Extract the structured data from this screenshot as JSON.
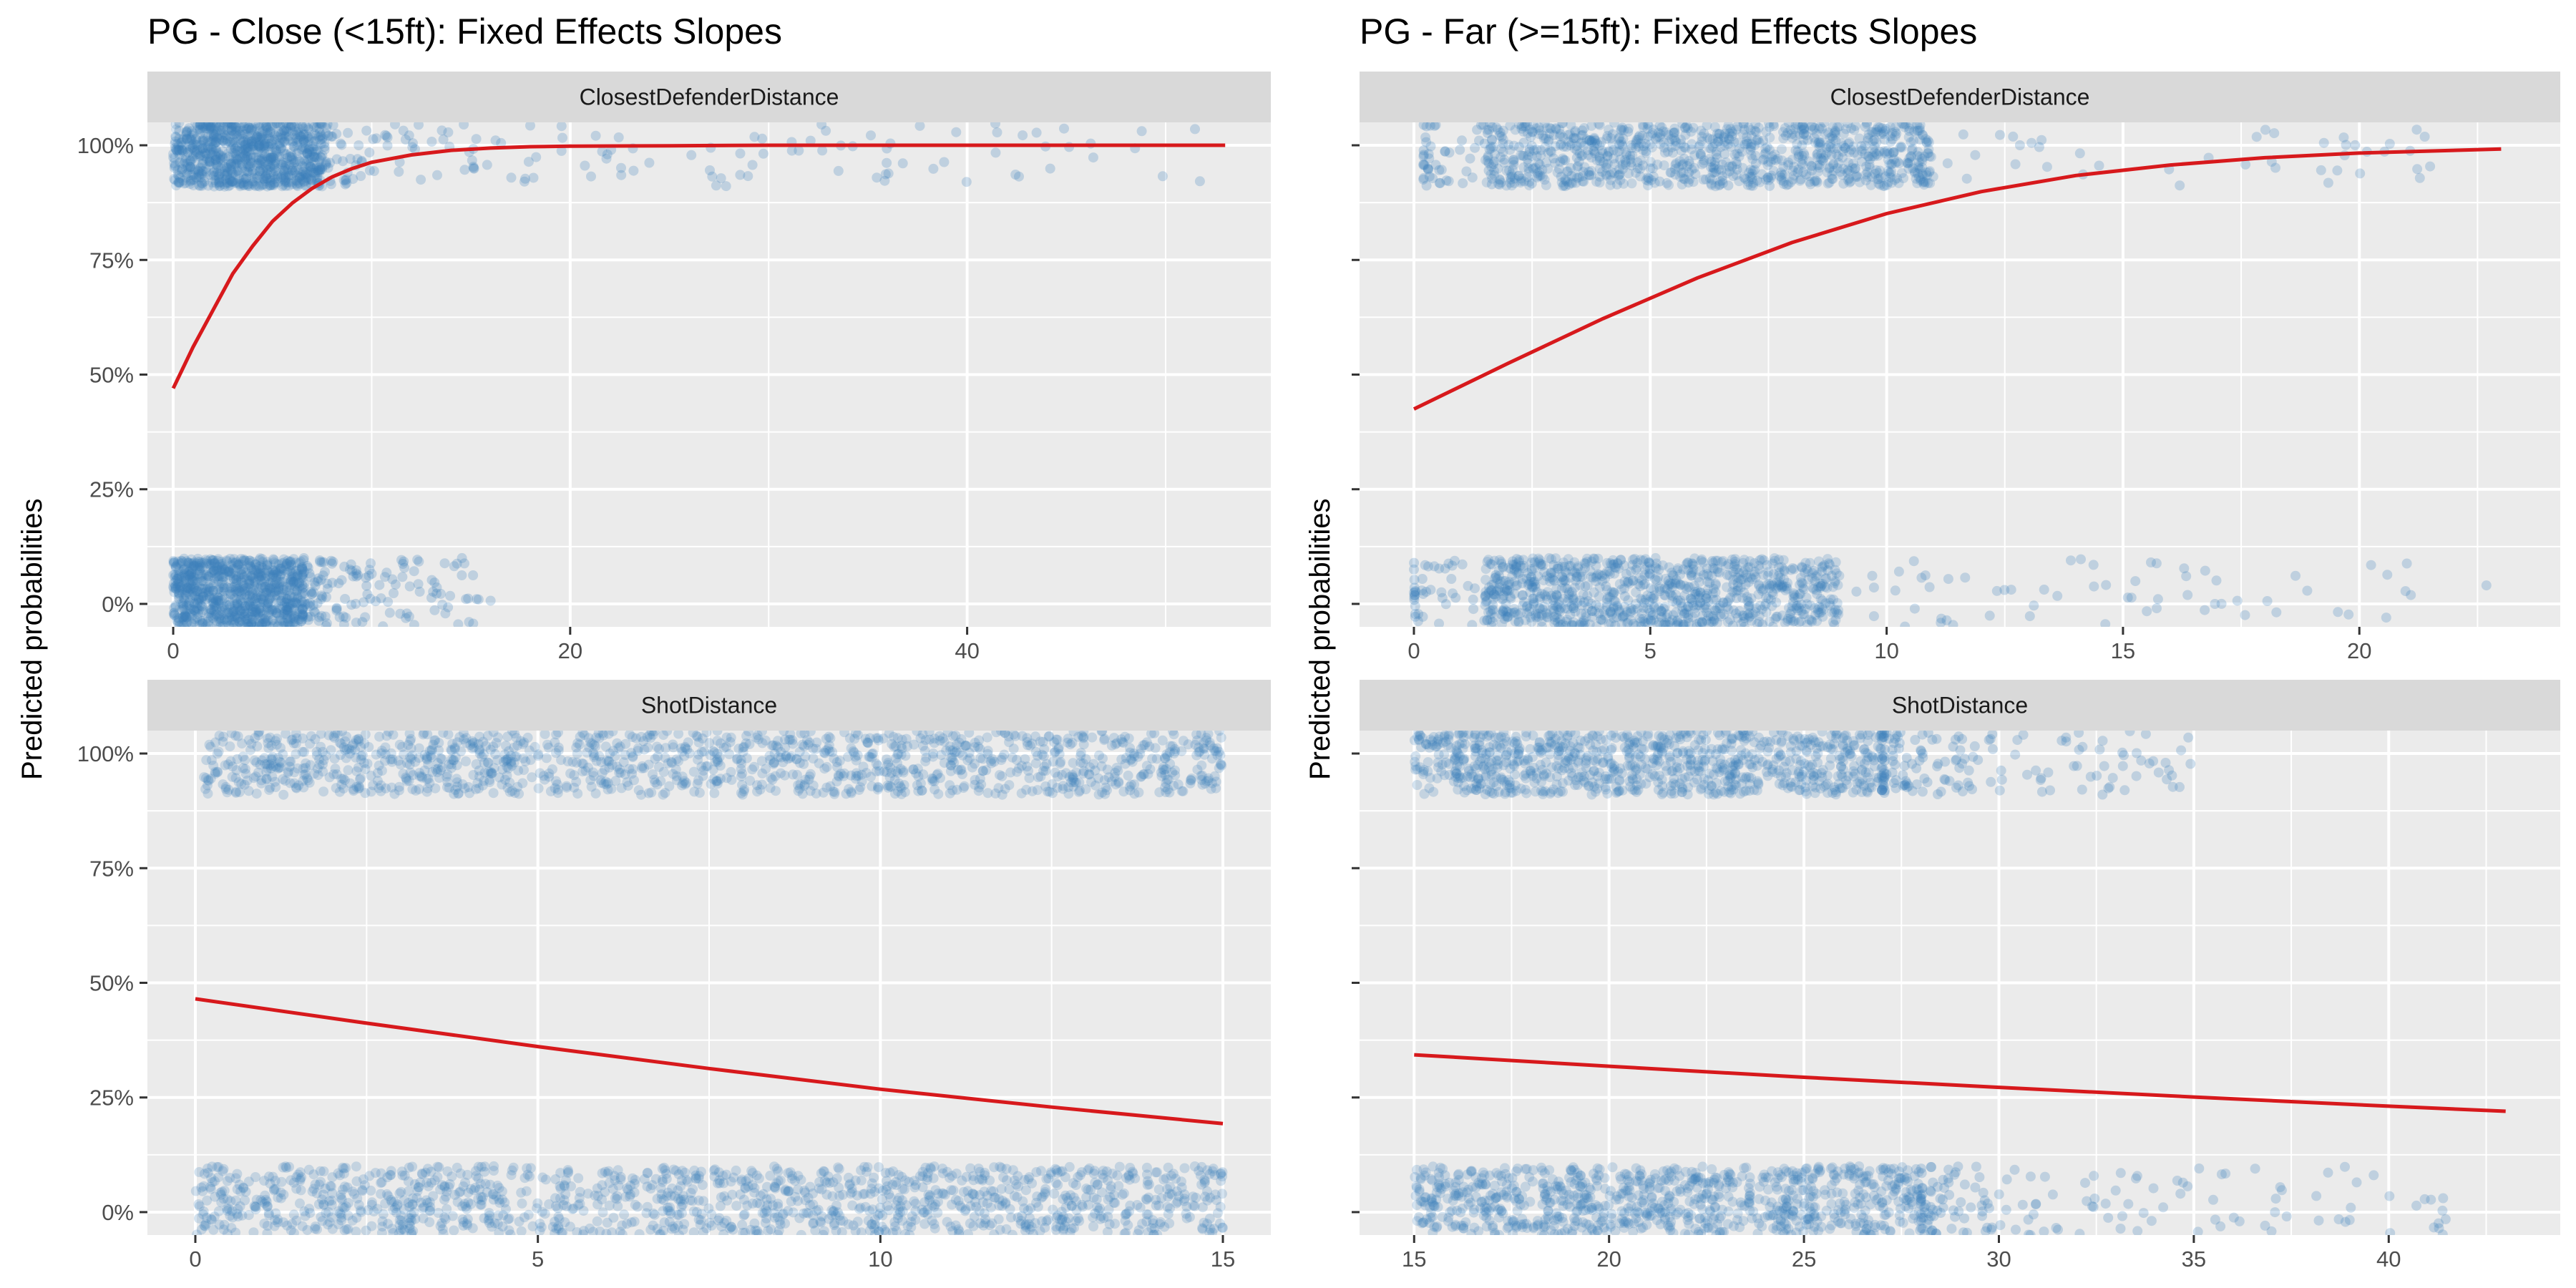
{
  "figure": {
    "background": "#ffffff",
    "panel_background": "#ebebeb",
    "strip_background": "#d9d9d9",
    "grid_color": "#ffffff",
    "point_color": "#3a7fbb",
    "curve_color": "#d7191c"
  },
  "chart_data": [
    {
      "type": "scatter",
      "title": "PG - Close (<15ft): Fixed Effects Slopes",
      "ylabel": "Predicted probabilities",
      "panels": [
        {
          "strip": "ClosestDefenderDistance",
          "xlim": [
            -1.3,
            55.3
          ],
          "ylim": [
            -0.05,
            1.05
          ],
          "x_ticks": [
            0,
            20,
            40
          ],
          "x_tick_labels": [
            "0",
            "20",
            "40"
          ],
          "y_ticks": [
            0,
            0.25,
            0.5,
            0.75,
            1
          ],
          "y_tick_labels": [
            "0%",
            "25%",
            "50%",
            "75%",
            "100%"
          ],
          "points": {
            "top_band": {
              "y_range": [
                0.91,
                1.05
              ],
              "dense_x": [
                0,
                7.5
              ],
              "sparse_x": [
                7.5,
                52
              ]
            },
            "bottom_band": {
              "y_range": [
                -0.05,
                0.1
              ],
              "dense_x": [
                0,
                6.5
              ],
              "sparse_x": [
                6.5,
                16
              ]
            }
          },
          "fit_line": {
            "x": [
              0,
              1,
              2,
              3,
              4,
              5,
              6,
              7,
              8,
              9,
              10,
              12,
              14,
              16,
              18,
              20,
              25,
              30,
              40,
              53
            ],
            "y": [
              0.47,
              0.56,
              0.64,
              0.72,
              0.78,
              0.834,
              0.874,
              0.906,
              0.931,
              0.949,
              0.963,
              0.979,
              0.989,
              0.994,
              0.997,
              0.998,
              0.999,
              1.0,
              1.0,
              1.0
            ]
          }
        },
        {
          "strip": "ShotDistance",
          "xlim": [
            -0.7,
            15.7
          ],
          "ylim": [
            -0.05,
            1.05
          ],
          "x_ticks": [
            0,
            5,
            10,
            15
          ],
          "x_tick_labels": [
            "0",
            "5",
            "10",
            "15"
          ],
          "y_ticks": [
            0,
            0.25,
            0.5,
            0.75,
            1
          ],
          "y_tick_labels": [
            "0%",
            "25%",
            "50%",
            "75%",
            "100%"
          ],
          "points": {
            "top_band": {
              "y_range": [
                0.91,
                1.05
              ],
              "dense_x": [
                0.1,
                15
              ]
            },
            "bottom_band": {
              "y_range": [
                -0.05,
                0.1
              ],
              "dense_x": [
                0,
                15
              ]
            }
          },
          "fit_line": {
            "x": [
              0,
              2.5,
              5,
              7.5,
              10,
              12.5,
              15
            ],
            "y": [
              0.465,
              0.412,
              0.361,
              0.313,
              0.268,
              0.229,
              0.193
            ]
          }
        }
      ]
    },
    {
      "type": "scatter",
      "title": "PG - Far (>=15ft): Fixed Effects Slopes",
      "ylabel": "Predicted probabilities",
      "panels": [
        {
          "strip": "ClosestDefenderDistance",
          "xlim": [
            -1.15,
            24.25
          ],
          "ylim": [
            -0.05,
            1.05
          ],
          "x_ticks": [
            0,
            5,
            10,
            15,
            20
          ],
          "x_tick_labels": [
            "0",
            "5",
            "10",
            "15",
            "20"
          ],
          "y_ticks": [
            0,
            0.25,
            0.5,
            0.75,
            1
          ],
          "y_tick_labels": [
            "0%",
            "25%",
            "50%",
            "75%",
            "100%"
          ],
          "points": {
            "top_band": {
              "y_range": [
                0.91,
                1.05
              ],
              "dense_x": [
                1.5,
                11
              ],
              "sparse_x": [
                0.2,
                21.5
              ]
            },
            "bottom_band": {
              "y_range": [
                -0.05,
                0.1
              ],
              "dense_x": [
                1.5,
                9
              ],
              "sparse_x": [
                0,
                23
              ]
            }
          },
          "fit_line": {
            "x": [
              0,
              2,
              4,
              6,
              8,
              10,
              12,
              14,
              16,
              18,
              20,
              23
            ],
            "y": [
              0.425,
              0.525,
              0.622,
              0.711,
              0.788,
              0.851,
              0.899,
              0.934,
              0.957,
              0.973,
              0.983,
              0.992
            ]
          }
        },
        {
          "strip": "ShotDistance",
          "xlim": [
            13.6,
            44.4
          ],
          "ylim": [
            -0.05,
            1.05
          ],
          "x_ticks": [
            15,
            20,
            25,
            30,
            35,
            40
          ],
          "x_tick_labels": [
            "15",
            "20",
            "25",
            "30",
            "35",
            "40"
          ],
          "y_ticks": [
            0,
            0.25,
            0.5,
            0.75,
            1
          ],
          "y_tick_labels": [
            "0%",
            "25%",
            "50%",
            "75%",
            "100%"
          ],
          "points": {
            "top_band": {
              "y_range": [
                0.91,
                1.05
              ],
              "dense_x": [
                15,
                27
              ],
              "sparse_x": [
                27,
                35
              ]
            },
            "bottom_band": {
              "y_range": [
                -0.05,
                0.1
              ],
              "dense_x": [
                15,
                28
              ],
              "sparse_x": [
                28,
                43
              ]
            }
          },
          "fit_line": {
            "x": [
              15,
              20,
              25,
              30,
              35,
              40,
              43
            ],
            "y": [
              0.343,
              0.318,
              0.294,
              0.272,
              0.251,
              0.231,
              0.22
            ]
          }
        }
      ]
    }
  ]
}
